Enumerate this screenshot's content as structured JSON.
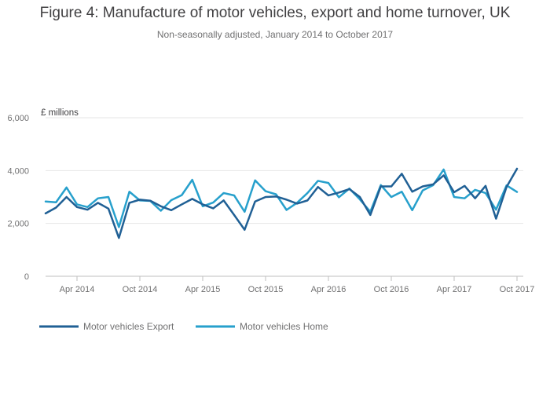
{
  "chart_data": {
    "type": "line",
    "title": "Figure 4: Manufacture of motor vehicles, export and home turnover, UK",
    "subtitle": "Non-seasonally adjusted, January 2014 to October 2017",
    "ylabel": "£ millions",
    "ylim": [
      0,
      6000
    ],
    "y_ticks": [
      "0",
      "2,000",
      "4,000",
      "6,000"
    ],
    "y_tick_values": [
      0,
      2000,
      4000,
      6000
    ],
    "x_tick_labels": [
      "Apr 2014",
      "Oct 2014",
      "Apr 2015",
      "Oct 2015",
      "Apr 2016",
      "Oct 2016",
      "Apr 2017",
      "Oct 2017"
    ],
    "x_tick_indices": [
      3,
      9,
      15,
      21,
      27,
      33,
      39,
      45
    ],
    "x": [
      "Jan 2014",
      "Feb 2014",
      "Mar 2014",
      "Apr 2014",
      "May 2014",
      "Jun 2014",
      "Jul 2014",
      "Aug 2014",
      "Sep 2014",
      "Oct 2014",
      "Nov 2014",
      "Dec 2014",
      "Jan 2015",
      "Feb 2015",
      "Mar 2015",
      "Apr 2015",
      "May 2015",
      "Jun 2015",
      "Jul 2015",
      "Aug 2015",
      "Sep 2015",
      "Oct 2015",
      "Nov 2015",
      "Dec 2015",
      "Jan 2016",
      "Feb 2016",
      "Mar 2016",
      "Apr 2016",
      "May 2016",
      "Jun 2016",
      "Jul 2016",
      "Aug 2016",
      "Sep 2016",
      "Oct 2016",
      "Nov 2016",
      "Dec 2016",
      "Jan 2017",
      "Feb 2017",
      "Mar 2017",
      "Apr 2017",
      "May 2017",
      "Jun 2017",
      "Jul 2017",
      "Aug 2017",
      "Sep 2017",
      "Oct 2017"
    ],
    "grid": true,
    "legend_position": "bottom",
    "series": [
      {
        "name": "Motor vehicles Export",
        "color": "#206095",
        "values": [
          2380,
          2600,
          3000,
          2620,
          2520,
          2780,
          2560,
          1450,
          2780,
          2900,
          2860,
          2650,
          2500,
          2720,
          2930,
          2720,
          2570,
          2870,
          2320,
          1760,
          2830,
          3000,
          3020,
          2900,
          2750,
          2870,
          3380,
          3060,
          3170,
          3300,
          3000,
          2320,
          3400,
          3400,
          3880,
          3200,
          3400,
          3480,
          3820,
          3180,
          3420,
          2950,
          3420,
          2180,
          3380,
          4070
        ]
      },
      {
        "name": "Motor vehicles Home",
        "color": "#27A0CC",
        "values": [
          2830,
          2800,
          3360,
          2720,
          2620,
          2950,
          3000,
          1860,
          3200,
          2870,
          2850,
          2480,
          2880,
          3070,
          3650,
          2650,
          2790,
          3150,
          3060,
          2440,
          3630,
          3220,
          3100,
          2510,
          2780,
          3150,
          3610,
          3530,
          2990,
          3320,
          2910,
          2440,
          3450,
          3000,
          3200,
          2500,
          3250,
          3450,
          4040,
          3000,
          2950,
          3270,
          3150,
          2520,
          3440,
          3190
        ]
      }
    ]
  }
}
